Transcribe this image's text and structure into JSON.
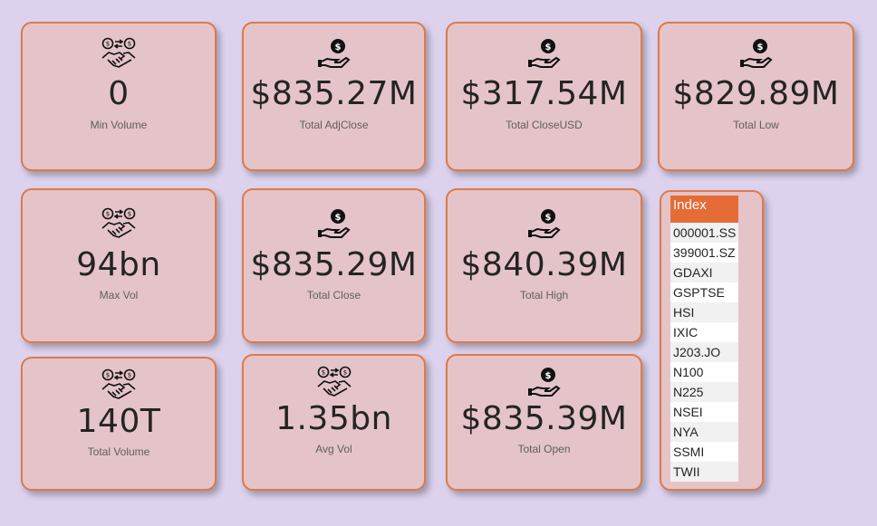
{
  "cards": [
    {
      "id": "min-volume",
      "icon": "handshake-money-icon",
      "value": "0",
      "label": "Min Volume"
    },
    {
      "id": "total-adjclose",
      "icon": "hand-coin-icon",
      "value": "$835.27M",
      "label": "Total AdjClose"
    },
    {
      "id": "total-closeusd",
      "icon": "hand-coin-icon",
      "value": "$317.54M",
      "label": "Total CloseUSD"
    },
    {
      "id": "total-low",
      "icon": "hand-coin-icon",
      "value": "$829.89M",
      "label": "Total Low"
    },
    {
      "id": "max-vol",
      "icon": "handshake-money-icon",
      "value": "94bn",
      "label": "Max Vol"
    },
    {
      "id": "total-close",
      "icon": "hand-coin-icon",
      "value": "$835.29M",
      "label": "Total Close"
    },
    {
      "id": "total-high",
      "icon": "hand-coin-icon",
      "value": "$840.39M",
      "label": "Total High"
    },
    {
      "id": "total-volume",
      "icon": "handshake-money-icon",
      "value": "140T",
      "label": "Total Volume"
    },
    {
      "id": "avg-vol",
      "icon": "handshake-money-icon",
      "value": "1.35bn",
      "label": "Avg Vol"
    },
    {
      "id": "total-open",
      "icon": "hand-coin-icon",
      "value": "$835.39M",
      "label": "Total Open"
    }
  ],
  "slicer": {
    "header": "Index",
    "items": [
      "000001.SS",
      "399001.SZ",
      "GDAXI",
      "GSPTSE",
      "HSI",
      "IXIC",
      "J203.JO",
      "N100",
      "N225",
      "NSEI",
      "NYA",
      "SSMI",
      "TWII"
    ]
  },
  "colors": {
    "background": "#dcd2ee",
    "card": "#e4c4c8",
    "border": "#de7a47",
    "header": "#e66c37",
    "value_text": "#252423",
    "label_text": "#605e5c"
  }
}
